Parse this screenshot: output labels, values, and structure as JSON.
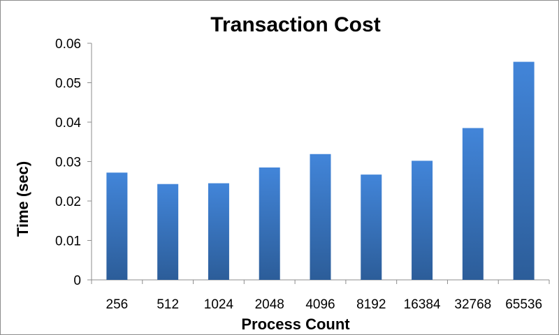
{
  "chart_data": {
    "type": "bar",
    "title": "Transaction Cost",
    "xlabel": "Process Count",
    "ylabel": "Time (sec)",
    "categories": [
      "256",
      "512",
      "1024",
      "2048",
      "4096",
      "8192",
      "16384",
      "32768",
      "65536"
    ],
    "values": [
      0.0272,
      0.0243,
      0.0245,
      0.0285,
      0.0319,
      0.0267,
      0.0302,
      0.0385,
      0.0553
    ],
    "ylim": [
      0,
      0.06
    ],
    "yticks": [
      "0",
      "0.01",
      "0.02",
      "0.03",
      "0.04",
      "0.05",
      "0.06"
    ],
    "grid": false,
    "legend": "none",
    "bar_color_top": "#4285d9",
    "bar_color_bottom": "#2c5d99"
  }
}
